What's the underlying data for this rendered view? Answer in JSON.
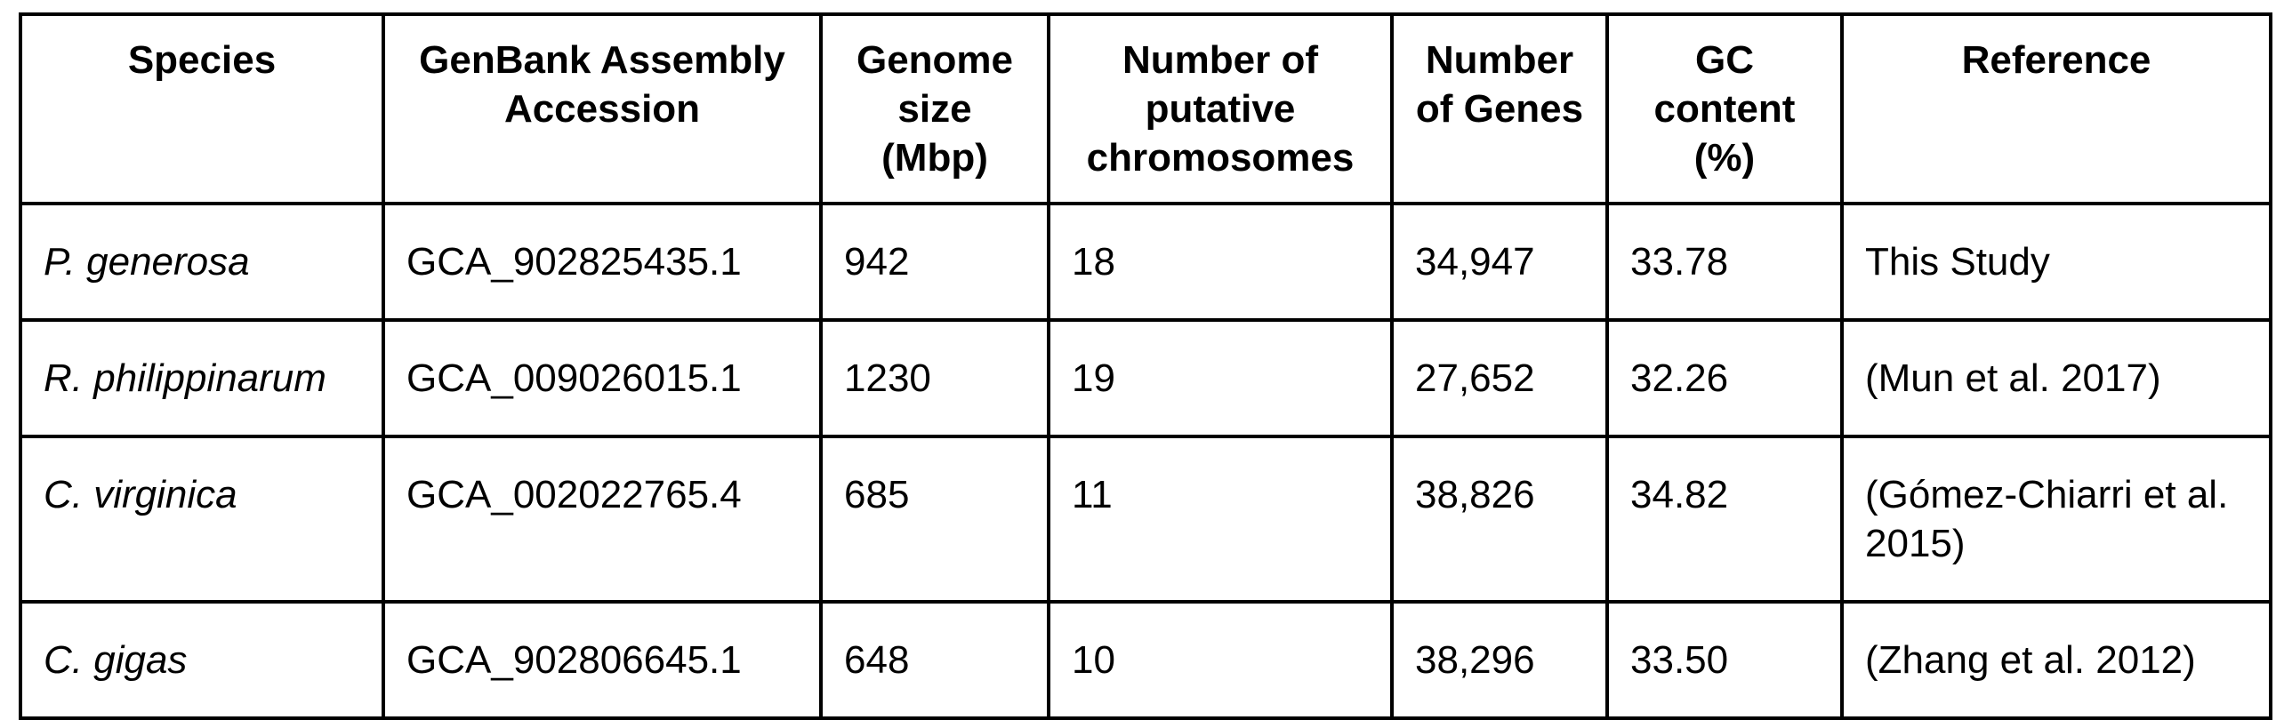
{
  "table": {
    "headers": [
      "Species",
      "GenBank Assembly Accession",
      "Genome size (Mbp)",
      "Number of putative chromosomes",
      "Number of Genes",
      "GC content (%)",
      "Reference"
    ],
    "rows": [
      [
        "P. generosa",
        "GCA_902825435.1",
        "942",
        "18",
        "34,947",
        "33.78",
        "This Study"
      ],
      [
        "R. philippinarum",
        "GCA_009026015.1",
        "1230",
        "19",
        "27,652",
        "32.26",
        "(Mun et al. 2017)"
      ],
      [
        "C. virginica",
        "GCA_002022765.4",
        "685",
        "11",
        "38,826",
        "34.82",
        "(Gómez-Chiarri et al. 2015)"
      ],
      [
        "C. gigas",
        "GCA_902806645.1",
        "648",
        "10",
        "38,296",
        "33.50",
        "(Zhang et al. 2012)"
      ]
    ]
  }
}
